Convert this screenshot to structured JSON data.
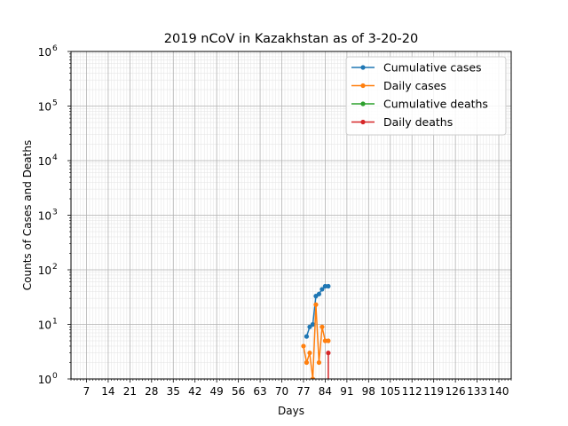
{
  "chart_data": {
    "type": "line",
    "title": "2019 nCoV in Kazakhstan as of 3-20-20",
    "xlabel": "Days",
    "ylabel": "Counts of Cases and Deaths",
    "xlim": [
      2,
      144
    ],
    "ylim": [
      1,
      1000000
    ],
    "yscale": "log",
    "grid": "major and minor",
    "legend_position": "top-right",
    "x_ticks": [
      7,
      14,
      21,
      28,
      35,
      42,
      49,
      56,
      63,
      70,
      77,
      84,
      91,
      98,
      105,
      112,
      119,
      126,
      133,
      140
    ],
    "y_ticks": [
      {
        "value": 1,
        "base": "10",
        "exp": "0"
      },
      {
        "value": 10,
        "base": "10",
        "exp": "1"
      },
      {
        "value": 100,
        "base": "10",
        "exp": "2"
      },
      {
        "value": 1000,
        "base": "10",
        "exp": "3"
      },
      {
        "value": 10000,
        "base": "10",
        "exp": "4"
      },
      {
        "value": 100000,
        "base": "10",
        "exp": "5"
      },
      {
        "value": 1000000,
        "base": "10",
        "exp": "6"
      }
    ],
    "series": [
      {
        "name": "Cumulative cases",
        "color": "#1f77b4",
        "x": [
          78,
          79,
          80,
          81,
          82,
          83,
          84,
          85
        ],
        "y": [
          6,
          9,
          10,
          33,
          36,
          44,
          50,
          50
        ]
      },
      {
        "name": "Daily cases",
        "color": "#ff7f0e",
        "x": [
          77,
          78,
          79,
          80,
          81,
          82,
          83,
          84,
          85
        ],
        "y": [
          4,
          2,
          3,
          1,
          23,
          2,
          9,
          5,
          5
        ]
      },
      {
        "name": "Cumulative deaths",
        "color": "#2ca02c",
        "x": [],
        "y": []
      },
      {
        "name": "Daily deaths",
        "color": "#d62728",
        "x": [
          85
        ],
        "y": [
          3
        ]
      }
    ]
  }
}
